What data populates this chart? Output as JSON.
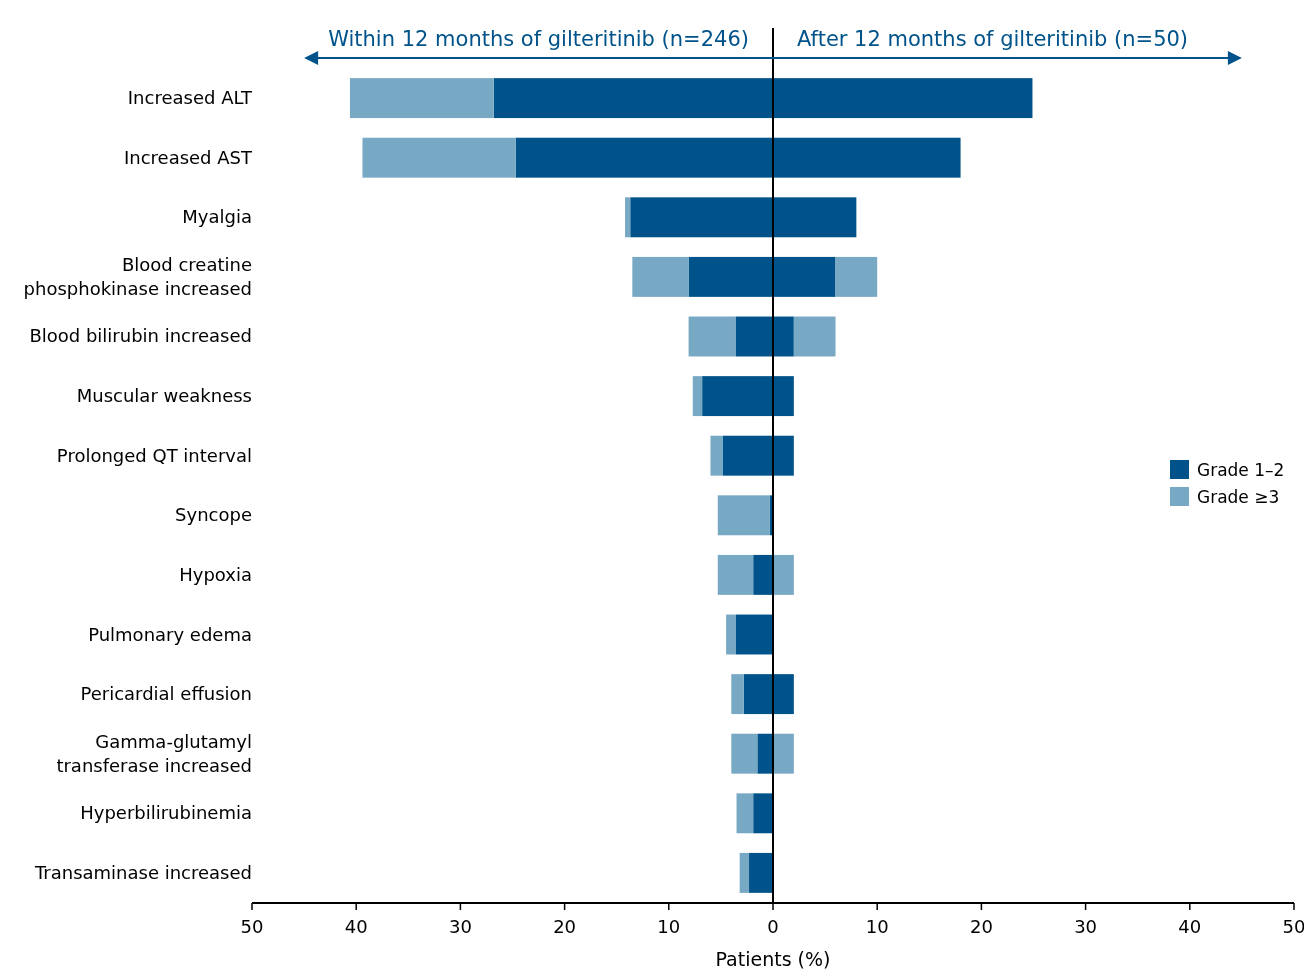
{
  "chart_data": {
    "type": "bar",
    "orientation": "horizontal",
    "stacked": true,
    "categories": [
      "Increased ALT",
      "Increased AST",
      "Myalgia",
      "Blood creatine phosphokinase increased",
      "Blood bilirubin increased",
      "Muscular weakness",
      "Prolonged QT interval",
      "Syncope",
      "Hypoxia",
      "Pulmonary edema",
      "Pericardial effusion",
      "Gamma-glutamyl transferase increased",
      "Hyperbilirubinemia",
      "Transaminase increased"
    ],
    "series": [
      {
        "name": "Grade 1–2",
        "color": "#00538a",
        "values": [
          -26.8,
          -24.7,
          -13.7,
          -8.1,
          -3.6,
          -6.8,
          -4.8,
          -0.3,
          -1.9,
          -3.6,
          -2.8,
          -1.5,
          -1.9,
          -2.3
        ]
      },
      {
        "name": "Grade ≥3",
        "color": "#78a9c4",
        "values": [
          -13.8,
          -14.7,
          -0.5,
          -5.4,
          -4.5,
          -0.9,
          -1.2,
          -5.0,
          -3.4,
          -0.9,
          -1.2,
          -2.5,
          -1.6,
          -0.9
        ]
      },
      {
        "color": "#00538a",
        "values": [
          24.9,
          18,
          8,
          6,
          2,
          2,
          2,
          0,
          0,
          0,
          2,
          0,
          0,
          0
        ]
      },
      {
        "color": "#78a9c4",
        "values": [
          0,
          0,
          0,
          4,
          4,
          0,
          0,
          0,
          2,
          0,
          0,
          2,
          0,
          0
        ]
      }
    ],
    "xlim": [
      -50,
      50
    ],
    "xticks": [
      {
        "value": -50,
        "label": "50"
      },
      {
        "value": -40,
        "label": "40"
      },
      {
        "value": -30,
        "label": "30"
      },
      {
        "value": -20,
        "label": "20"
      },
      {
        "value": -10,
        "label": "10"
      },
      0,
      10,
      20,
      30,
      40,
      50
    ],
    "xlabel": "Patients (%)",
    "annotations": [
      "Within 12 months of gilteritinib (n=246)",
      "After 12 months of gilteritinib (n=50)"
    ],
    "legend": "right"
  }
}
